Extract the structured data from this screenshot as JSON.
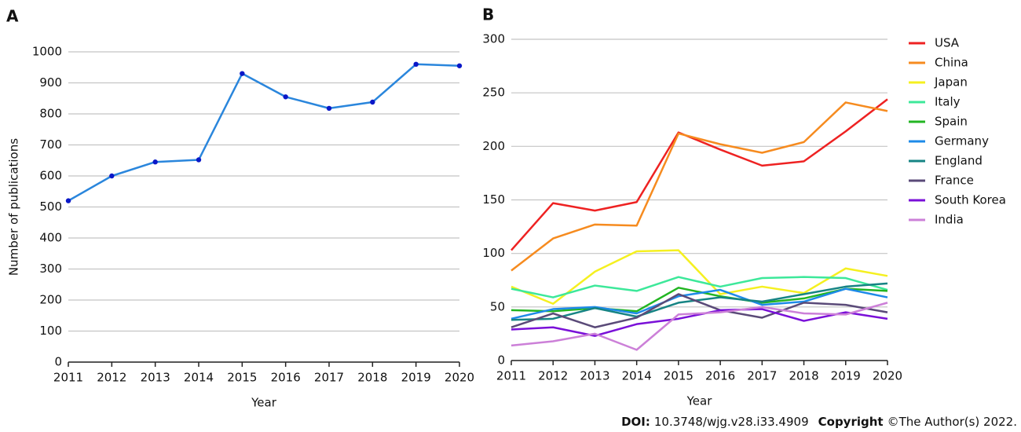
{
  "chart_data": [
    {
      "type": "line",
      "panel": "A",
      "xlabel": "Year",
      "ylabel": "Number of publications",
      "x": [
        2011,
        2012,
        2013,
        2014,
        2015,
        2016,
        2017,
        2018,
        2019,
        2020
      ],
      "xlim": [
        2011,
        2020
      ],
      "xticks": [
        2011,
        2012,
        2013,
        2014,
        2015,
        2016,
        2017,
        2018,
        2019,
        2020
      ],
      "ylim": [
        0,
        1000
      ],
      "yticks": [
        0,
        100,
        200,
        300,
        400,
        500,
        600,
        700,
        800,
        900,
        1000
      ],
      "grid": true,
      "markers": true,
      "series": [
        {
          "color": "#2a86dc",
          "marker_color": "#0a18c8",
          "values": [
            520,
            600,
            645,
            652,
            930,
            855,
            818,
            838,
            960,
            955
          ]
        }
      ]
    },
    {
      "type": "line",
      "panel": "B",
      "xlabel": "Year",
      "x": [
        2011,
        2012,
        2013,
        2014,
        2015,
        2016,
        2017,
        2018,
        2019,
        2020
      ],
      "xlim": [
        2011,
        2020
      ],
      "xticks": [
        2011,
        2012,
        2013,
        2014,
        2015,
        2016,
        2017,
        2018,
        2019,
        2020
      ],
      "ylim": [
        0,
        300
      ],
      "yticks": [
        0,
        50,
        100,
        150,
        200,
        250,
        300
      ],
      "grid": true,
      "legend": "right",
      "series": [
        {
          "name": "USA",
          "color": "#ee2222",
          "values": [
            103,
            147,
            140,
            148,
            213,
            197,
            182,
            186,
            214,
            244
          ]
        },
        {
          "name": "China",
          "color": "#f68b1f",
          "values": [
            84,
            114,
            127,
            126,
            212,
            202,
            194,
            204,
            241,
            233
          ]
        },
        {
          "name": "Japan",
          "color": "#f5f020",
          "values": [
            69,
            53,
            83,
            102,
            103,
            62,
            69,
            63,
            86,
            79
          ]
        },
        {
          "name": "Italy",
          "color": "#3de89a",
          "values": [
            67,
            59,
            70,
            65,
            78,
            69,
            77,
            78,
            77,
            66
          ]
        },
        {
          "name": "Spain",
          "color": "#22b522",
          "values": [
            47,
            46,
            49,
            46,
            68,
            60,
            54,
            58,
            67,
            65
          ]
        },
        {
          "name": "Germany",
          "color": "#1e8ae8",
          "values": [
            39,
            48,
            50,
            44,
            60,
            66,
            52,
            55,
            67,
            59
          ]
        },
        {
          "name": "England",
          "color": "#168484",
          "values": [
            38,
            39,
            49,
            41,
            54,
            59,
            55,
            62,
            69,
            72
          ]
        },
        {
          "name": "France",
          "color": "#5a4a78",
          "values": [
            31,
            44,
            31,
            40,
            62,
            47,
            40,
            54,
            52,
            45
          ]
        },
        {
          "name": "South Korea",
          "color": "#7a10d8",
          "values": [
            29,
            31,
            23,
            34,
            39,
            47,
            48,
            37,
            45,
            39
          ]
        },
        {
          "name": "India",
          "color": "#cc80d8",
          "values": [
            14,
            18,
            25,
            10,
            43,
            45,
            50,
            44,
            43,
            54
          ]
        }
      ]
    }
  ],
  "footer": {
    "doi_label": "DOI:",
    "doi": "10.3748/wjg.v28.i33.4909",
    "copyright_label": "Copyright",
    "copyright": "©The Author(s) 2022."
  }
}
